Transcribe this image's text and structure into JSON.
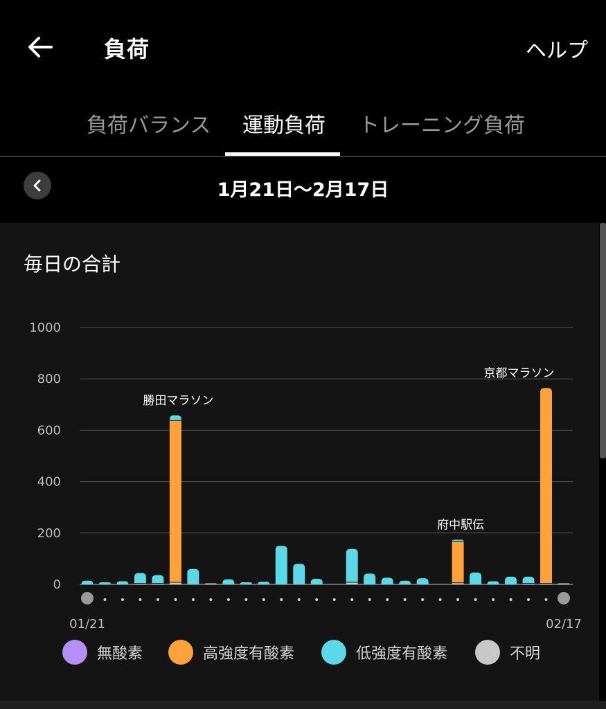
{
  "header": {
    "title": "負荷",
    "help_label": "ヘルプ"
  },
  "tabs": [
    {
      "label": "負荷バランス"
    },
    {
      "label": "運動負荷",
      "active": true
    },
    {
      "label": "トレーニング負荷"
    }
  ],
  "date_range": {
    "label": "1月21日〜2月17日"
  },
  "card": {
    "title": "毎日の合計"
  },
  "colors": {
    "anaerobic": "#b490f5",
    "high_aerobic": "#ffa13d",
    "low_aerobic": "#5dd8e8",
    "unknown": "#c8c8c8"
  },
  "chart_data": {
    "type": "bar",
    "stacked": true,
    "ylim": [
      0,
      1000
    ],
    "yticks": [
      0,
      200,
      400,
      600,
      800,
      1000
    ],
    "x_labels": {
      "start": "01/21",
      "end": "02/17"
    },
    "categories": [
      "01/21",
      "01/22",
      "01/23",
      "01/24",
      "01/25",
      "01/26",
      "01/27",
      "01/28",
      "01/29",
      "01/30",
      "01/31",
      "02/01",
      "02/02",
      "02/03",
      "02/04",
      "02/05",
      "02/06",
      "02/07",
      "02/08",
      "02/09",
      "02/10",
      "02/11",
      "02/12",
      "02/13",
      "02/14",
      "02/15",
      "02/16",
      "02/17"
    ],
    "series": [
      {
        "name": "無酸素",
        "values": [
          0,
          0,
          0,
          0,
          0,
          0,
          0,
          0,
          0,
          0,
          0,
          0,
          0,
          0,
          0,
          0,
          0,
          0,
          0,
          0,
          0,
          0,
          0,
          0,
          0,
          0,
          0,
          0
        ]
      },
      {
        "name": "高強度有酸素",
        "values": [
          0,
          0,
          0,
          0,
          0,
          630,
          0,
          0,
          0,
          0,
          0,
          0,
          0,
          0,
          0,
          0,
          0,
          0,
          0,
          0,
          0,
          160,
          0,
          0,
          0,
          0,
          760,
          0
        ]
      },
      {
        "name": "低強度有酸素",
        "values": [
          14,
          8,
          12,
          40,
          32,
          20,
          60,
          0,
          20,
          8,
          10,
          150,
          80,
          22,
          0,
          130,
          42,
          26,
          14,
          24,
          0,
          8,
          46,
          12,
          30,
          26,
          0,
          0
        ]
      },
      {
        "name": "不明",
        "values": [
          0,
          0,
          0,
          4,
          4,
          8,
          0,
          4,
          0,
          0,
          0,
          0,
          0,
          0,
          0,
          8,
          0,
          0,
          0,
          0,
          0,
          6,
          0,
          0,
          0,
          4,
          4,
          4
        ]
      }
    ],
    "annotations": [
      {
        "index": 5,
        "text": "勝田マラソン"
      },
      {
        "index": 21,
        "text": "府中駅伝"
      },
      {
        "index": 26,
        "text": "京都マラソン"
      }
    ],
    "legend_position": "bottom"
  }
}
